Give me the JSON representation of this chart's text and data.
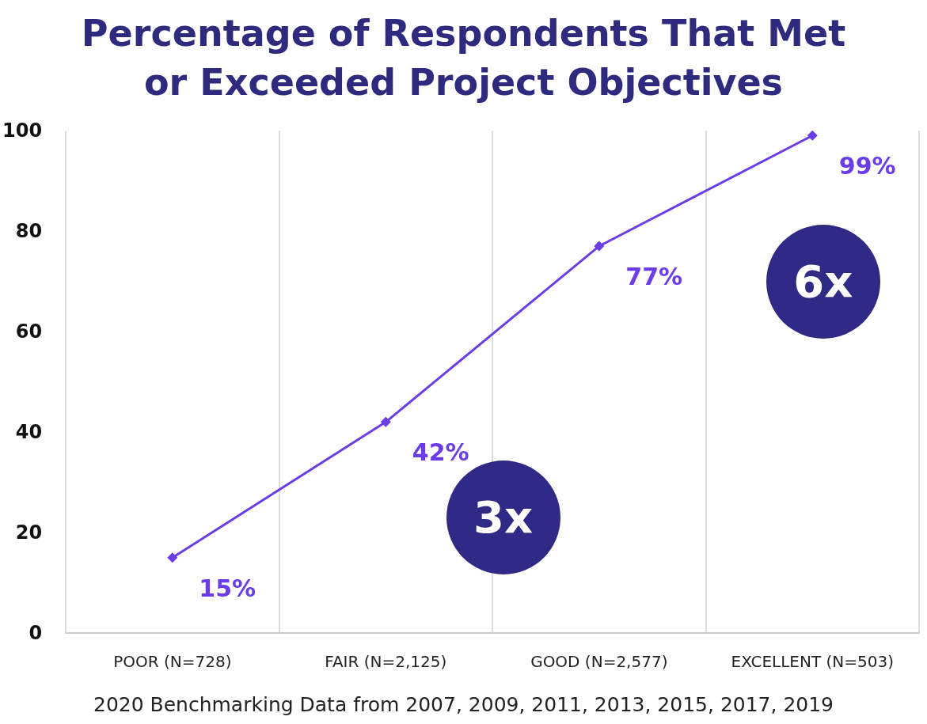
{
  "chart_data": {
    "type": "line",
    "title": "Percentage of Respondents That Met\nor Exceeded Project Objectives",
    "categories": [
      "POOR (N=728)",
      "FAIR (N=2,125)",
      "GOOD (N=2,577)",
      "EXCELLENT (N=503)"
    ],
    "series": [
      {
        "color": "#6a3de8",
        "values": [
          15,
          42,
          77,
          99
        ],
        "value_labels": [
          "15%",
          "42%",
          "77%",
          "99%"
        ]
      }
    ],
    "ylim": [
      0,
      100
    ],
    "yticks": [
      0,
      20,
      40,
      60,
      80,
      100
    ],
    "grid": "x",
    "marker": "diamond",
    "line_style": "solid",
    "annotations": [
      "3x",
      "6x",
      "2020 Benchmarking Data from 2007, 2009, 2011, 2013, 2015, 2017, 2019"
    ]
  }
}
